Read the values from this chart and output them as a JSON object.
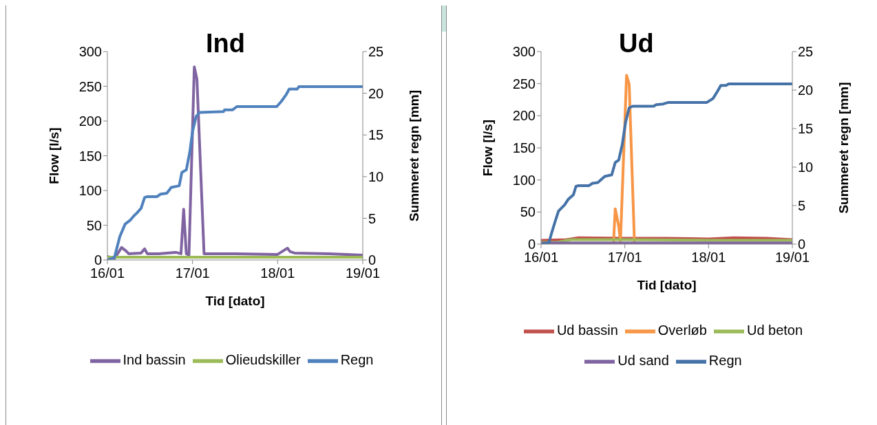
{
  "chart_data": [
    {
      "type": "line",
      "title": "Ind",
      "xlabel": "Tid [dato]",
      "ylabel": "Flow [l/s]",
      "y2label": "Summeret regn [mm]",
      "xlim": [
        "--01-16",
        "--01-19"
      ],
      "xticks": [
        {
          "value": "--01-16",
          "label": "16/01"
        },
        {
          "value": "--01-17",
          "label": "17/01"
        },
        {
          "value": "--01-18",
          "label": "18/01"
        },
        {
          "value": "--01-19",
          "label": "19/01"
        }
      ],
      "ylim": [
        0,
        300
      ],
      "yticks": [
        0,
        50,
        100,
        150,
        200,
        250,
        300
      ],
      "y2lim": [
        0,
        25
      ],
      "y2ticks": [
        0,
        5,
        10,
        15,
        20,
        25
      ],
      "legend": "bottom",
      "series": [
        {
          "name": "Ind bassin",
          "color": "#8064a2",
          "x": [
            "--01-16T00:00",
            "--01-16T02:00",
            "--01-16T04:00",
            "--01-16T05:15",
            "--01-16T06:00",
            "--01-16T09:30",
            "--01-16T10:30",
            "--01-16T11:15",
            "--01-16T14:30",
            "--01-16T19:15",
            "--01-16T20:45",
            "--01-16T21:30",
            "--01-16T22:15",
            "--01-16T23:00",
            "--01-17T00:30",
            "--01-17T01:15",
            "--01-17T03:15",
            "--01-17T12:00",
            "--01-18T00:00",
            "--01-18T02:45",
            "--01-18T03:30",
            "--01-18T04:45",
            "--01-18T14:30",
            "--01-19T00:00"
          ],
          "values": [
            5,
            2,
            18,
            13,
            9,
            10,
            16,
            9,
            9,
            11,
            9,
            73,
            9,
            7,
            278,
            260,
            9,
            9,
            8,
            17,
            12,
            10,
            9,
            7
          ]
        },
        {
          "name": "Olieudskiller",
          "color": "#9bbb59",
          "x": [
            "--01-16T00:00",
            "--01-19T00:00"
          ],
          "values": [
            4,
            4
          ]
        },
        {
          "name": "Regn",
          "color": "#4f81bd",
          "axis": "y2",
          "x": [
            "--01-16T00:00",
            "--01-16T02:00",
            "--01-16T03:30",
            "--01-16T05:00",
            "--01-16T06:30",
            "--01-16T07:30",
            "--01-16T08:15",
            "--01-16T09:30",
            "--01-16T10:30",
            "--01-16T11:15",
            "--01-16T14:00",
            "--01-16T15:00",
            "--01-16T16:45",
            "--01-16T18:00",
            "--01-16T20:15",
            "--01-16T21:00",
            "--01-16T22:15",
            "--01-16T23:15",
            "--01-17T00:00",
            "--01-17T01:00",
            "--01-17T02:00",
            "--01-17T08:45",
            "--01-17T09:00",
            "--01-17T11:15",
            "--01-17T12:30",
            "--01-17T23:45",
            "--01-18T01:00",
            "--01-18T02:30",
            "--01-18T03:15",
            "--01-18T05:30",
            "--01-18T06:00",
            "--01-19T00:00"
          ],
          "values": [
            0,
            0.3,
            2.8,
            4.3,
            4.8,
            5.3,
            5.6,
            6.2,
            7.5,
            7.6,
            7.6,
            7.9,
            8.0,
            8.7,
            8.9,
            10.5,
            10.8,
            13.0,
            15.4,
            17.2,
            17.7,
            17.8,
            18.0,
            18.0,
            18.4,
            18.4,
            19.0,
            19.9,
            20.5,
            20.5,
            20.8,
            20.8
          ]
        }
      ]
    },
    {
      "type": "line",
      "title": "Ud",
      "xlabel": "Tid [dato]",
      "ylabel": "Flow [l/s]",
      "y2label": "Summeret regn [mm]",
      "xlim": [
        "--01-16",
        "--01-19"
      ],
      "xticks": [
        {
          "value": "--01-16",
          "label": "16/01"
        },
        {
          "value": "--01-17",
          "label": "17/01"
        },
        {
          "value": "--01-18",
          "label": "18/01"
        },
        {
          "value": "--01-19",
          "label": "19/01"
        }
      ],
      "ylim": [
        0,
        300
      ],
      "yticks": [
        0,
        50,
        100,
        150,
        200,
        250,
        300
      ],
      "y2lim": [
        0,
        25
      ],
      "y2ticks": [
        0,
        5,
        10,
        15,
        20,
        25
      ],
      "legend": "bottom",
      "series": [
        {
          "name": "Ud bassin",
          "color": "#c0504d",
          "x": [
            "--01-16T00:00",
            "--01-16T07:15",
            "--01-16T10:45",
            "--01-17T00:00",
            "--01-17T12:00",
            "--01-18T00:00",
            "--01-18T07:15",
            "--01-18T16:45",
            "--01-19T00:00"
          ],
          "values": [
            6,
            7,
            10,
            9,
            9,
            8,
            10,
            9,
            7
          ]
        },
        {
          "name": "Overløb",
          "color": "#f79646",
          "x": [
            "--01-16T00:00",
            "--01-16T20:45",
            "--01-16T21:15",
            "--01-16T22:15",
            "--01-16T22:45",
            "--01-17T00:30",
            "--01-17T01:15",
            "--01-17T02:45",
            "--01-17T03:00",
            "--01-19T00:00"
          ],
          "values": [
            0,
            0,
            55,
            28,
            4,
            263,
            249,
            4,
            0,
            0
          ]
        },
        {
          "name": "Ud beton",
          "color": "#9bbb59",
          "x": [
            "--01-16T00:00",
            "--01-16T04:45",
            "--01-16T08:30",
            "--01-17T00:00",
            "--01-18T00:00",
            "--01-19T00:00"
          ],
          "values": [
            3,
            3,
            7,
            7,
            6,
            6
          ]
        },
        {
          "name": "Ud sand",
          "color": "#8064a2",
          "x": [
            "--01-16T00:00",
            "--01-19T00:00"
          ],
          "values": [
            2,
            2
          ]
        },
        {
          "name": "Regn",
          "color": "#4572a7",
          "axis": "y2",
          "x": [
            "--01-16T00:00",
            "--01-16T02:15",
            "--01-16T03:00",
            "--01-16T04:00",
            "--01-16T05:00",
            "--01-16T06:45",
            "--01-16T07:45",
            "--01-16T09:15",
            "--01-16T10:00",
            "--01-16T10:45",
            "--01-16T13:45",
            "--01-16T14:45",
            "--01-16T16:15",
            "--01-16T18:15",
            "--01-16T20:15",
            "--01-16T21:15",
            "--01-16T22:15",
            "--01-16T23:15",
            "--01-17T00:15",
            "--01-17T01:15",
            "--01-17T02:15",
            "--01-17T08:15",
            "--01-17T09:00",
            "--01-17T11:00",
            "--01-17T12:30",
            "--01-17T23:30",
            "--01-18T01:15",
            "--01-18T02:30",
            "--01-18T03:30",
            "--01-18T05:00",
            "--01-18T05:45",
            "--01-19T00:00"
          ],
          "values": [
            0,
            0.2,
            1.4,
            2.9,
            4.3,
            5.1,
            5.8,
            6.4,
            7.5,
            7.6,
            7.6,
            7.9,
            8.0,
            8.8,
            9.0,
            10.6,
            10.9,
            12.9,
            15.9,
            17.7,
            17.9,
            17.9,
            18.1,
            18.2,
            18.4,
            18.4,
            18.9,
            19.8,
            20.6,
            20.6,
            20.8,
            20.8
          ]
        }
      ]
    }
  ]
}
